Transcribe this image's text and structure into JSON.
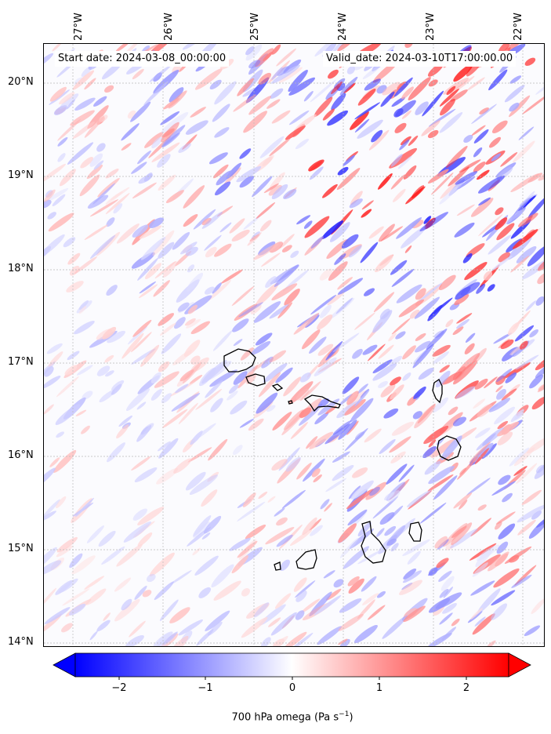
{
  "header": {
    "start_date": "Start date: 2024-03-08_00:00:00",
    "valid_date": "Valid_date: 2024-03-10T17:00:00.00"
  },
  "map": {
    "lon_labels": [
      "27°W",
      "26°W",
      "25°W",
      "24°W",
      "23°W",
      "22°W"
    ],
    "lat_labels": [
      "20°N",
      "19°N",
      "18°N",
      "17°N",
      "16°N",
      "15°N",
      "14°N"
    ],
    "field": "700 hPa vertical velocity (omega)",
    "colormap": "bwr",
    "coastline_color": "#000000"
  },
  "colorbar": {
    "ticks": [
      "−2",
      "−1",
      "0",
      "1",
      "2"
    ],
    "label_main": "700 hPa omega (Pa s",
    "label_exp": "−1",
    "label_close": ")",
    "min_color": "#0000ff",
    "mid_color": "#ffffff",
    "max_color": "#ff0000"
  }
}
